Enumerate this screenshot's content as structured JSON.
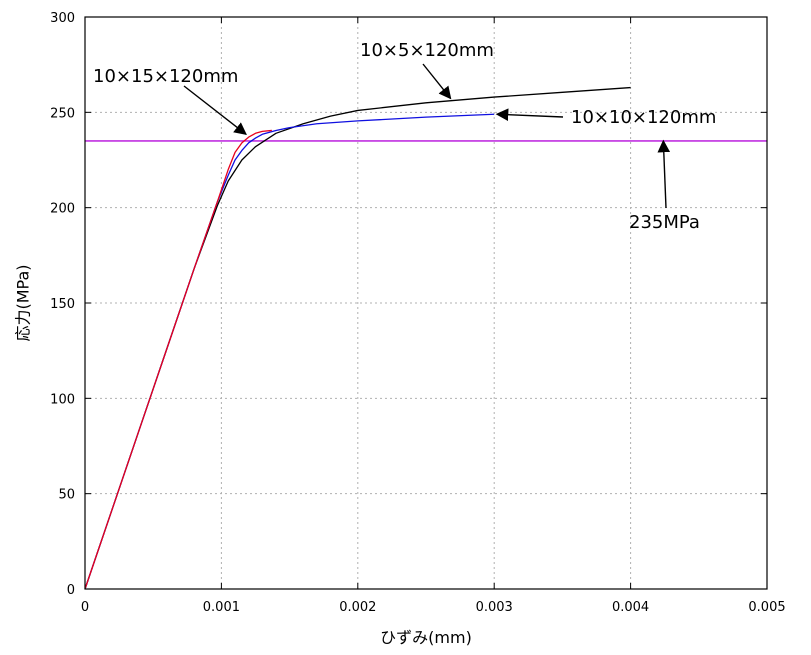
{
  "chart_data": {
    "type": "line",
    "xlabel": "ひずみ(mm)",
    "ylabel": "応力(MPa)",
    "xlim": [
      0,
      0.005
    ],
    "ylim": [
      0,
      300
    ],
    "grid": true,
    "x_ticks": [
      0,
      0.001,
      0.002,
      0.003,
      0.004,
      0.005
    ],
    "x_tick_labels": [
      "0",
      "0.001",
      "0.002",
      "0.003",
      "0.004",
      "0.005"
    ],
    "y_ticks": [
      0,
      50,
      100,
      150,
      200,
      250,
      300
    ],
    "y_tick_labels": [
      "0",
      "50",
      "100",
      "150",
      "200",
      "250",
      "300"
    ],
    "series": [
      {
        "name": "10×5×120mm",
        "color": "#000000",
        "x": [
          0,
          0.0002,
          0.0004,
          0.0006,
          0.0008,
          0.00097,
          0.00105,
          0.00115,
          0.00125,
          0.0014,
          0.0016,
          0.0018,
          0.002,
          0.0025,
          0.003,
          0.0035,
          0.004
        ],
        "y": [
          0,
          42,
          84,
          126,
          168,
          201,
          214,
          225,
          232,
          239,
          244,
          248,
          251,
          255,
          258,
          260.5,
          263
        ]
      },
      {
        "name": "10×15×120mm",
        "color": "#e8001c",
        "x": [
          0,
          0.0002,
          0.0004,
          0.0006,
          0.0008,
          0.00097,
          0.00105,
          0.0011,
          0.00115,
          0.0012,
          0.00125,
          0.0013,
          0.00137
        ],
        "y": [
          0,
          42,
          84,
          126,
          168,
          203,
          220,
          229,
          234,
          237,
          239,
          240,
          240.5
        ]
      },
      {
        "name": "10×10×120mm",
        "color": "#1010e0",
        "x": [
          0,
          0.0002,
          0.0004,
          0.0006,
          0.0008,
          0.00097,
          0.00105,
          0.0011,
          0.00115,
          0.0012,
          0.00125,
          0.0013,
          0.0014,
          0.0015,
          0.0017,
          0.002,
          0.0025,
          0.003
        ],
        "y": [
          0,
          42,
          84,
          126,
          168,
          203,
          217,
          225,
          230,
          234,
          236.5,
          238.5,
          240.5,
          242,
          244,
          245.5,
          247.5,
          249
        ]
      },
      {
        "name": "235MPa",
        "color": "#c030e0",
        "x": [
          0,
          0.005
        ],
        "y": [
          235,
          235
        ]
      }
    ],
    "annotations": [
      {
        "text": "10×5×120mm",
        "point": [
          0.00268,
          257.3
        ]
      },
      {
        "text": "10×15×120mm",
        "point": [
          0.00118,
          238.5
        ]
      },
      {
        "text": "10×10×120mm",
        "point": [
          0.00302,
          249
        ]
      },
      {
        "text": "235MPa",
        "point": [
          0.00424,
          235
        ]
      }
    ]
  }
}
